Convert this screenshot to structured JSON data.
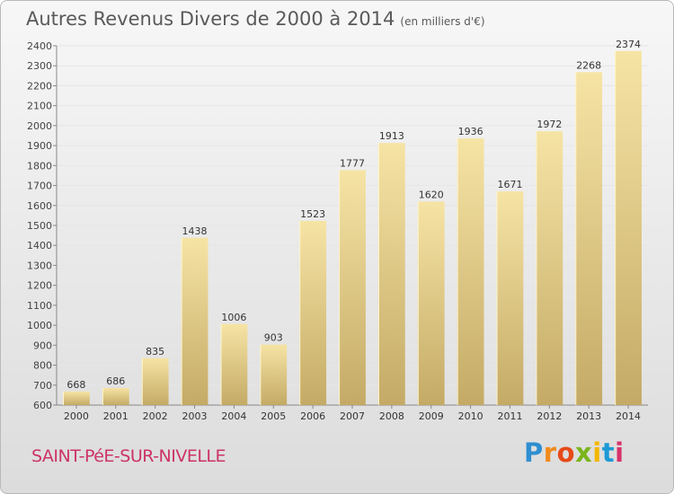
{
  "header": {
    "title": "Autres Revenus Divers de 2000 à 2014",
    "subtitle": "(en milliers d'€)"
  },
  "footer": {
    "commune": "SAINT-PéE-SUR-NIVELLE",
    "logo_letters": [
      "P",
      "r",
      "o",
      "x",
      "i",
      "t",
      "i"
    ],
    "logo_colors": [
      "#2f8fd1",
      "#f08a1c",
      "#e64a19",
      "#7ab51d",
      "#f2b705",
      "#1c9ad6",
      "#d8326b"
    ]
  },
  "colors": {
    "bar_light": "#f6e4a5",
    "bar_dark": "#c4aa66",
    "grid": "#e6e6e6"
  },
  "chart_data": {
    "type": "bar",
    "title": "Autres Revenus Divers de 2000 à 2014",
    "categories": [
      "2000",
      "2001",
      "2002",
      "2003",
      "2004",
      "2005",
      "2006",
      "2007",
      "2008",
      "2009",
      "2010",
      "2011",
      "2012",
      "2013",
      "2014"
    ],
    "values": [
      668,
      686,
      835,
      1438,
      1006,
      903,
      1523,
      1777,
      1913,
      1620,
      1936,
      1671,
      1972,
      2268,
      2374
    ],
    "ylim": [
      600,
      2400
    ],
    "yticks": [
      600,
      700,
      800,
      900,
      1000,
      1100,
      1200,
      1300,
      1400,
      1500,
      1600,
      1700,
      1800,
      1900,
      2000,
      2100,
      2200,
      2300,
      2400
    ],
    "grid": true,
    "data_labels": true
  }
}
